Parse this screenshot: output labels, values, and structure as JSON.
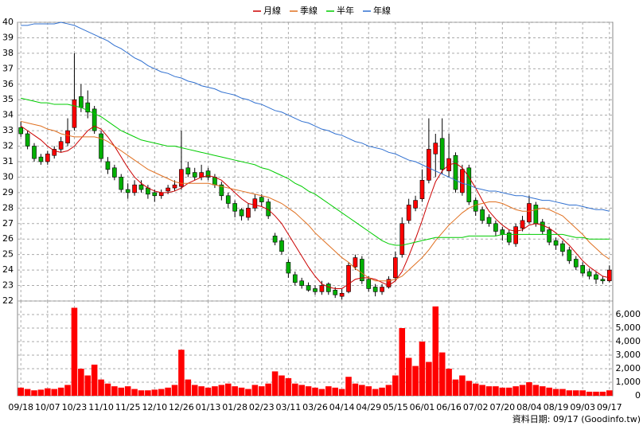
{
  "chart_data": {
    "type": "candlestick",
    "source_note": "資料日期: 09/17 (Goodinfo.tw)",
    "categories": [
      "09/18",
      null,
      null,
      null,
      "10/07",
      null,
      null,
      null,
      "10/23",
      null,
      null,
      null,
      "11/10",
      null,
      null,
      null,
      "11/25",
      null,
      null,
      null,
      "12/10",
      null,
      null,
      null,
      "12/26",
      null,
      null,
      null,
      "01/13",
      null,
      null,
      null,
      "01/28",
      null,
      null,
      null,
      "02/23",
      null,
      null,
      null,
      "03/11",
      null,
      null,
      null,
      "03/26",
      null,
      null,
      null,
      "04/14",
      null,
      null,
      null,
      "04/29",
      null,
      null,
      null,
      "05/15",
      null,
      null,
      null,
      "06/01",
      null,
      null,
      null,
      "06/16",
      null,
      null,
      null,
      "07/02",
      null,
      null,
      null,
      "07/20",
      null,
      null,
      null,
      "08/04",
      null,
      null,
      null,
      "08/19",
      null,
      null,
      null,
      "09/03",
      null,
      null,
      null,
      "09/17"
    ],
    "open": [
      33.2,
      32.8,
      32.0,
      31.3,
      31.0,
      31.4,
      31.8,
      32.2,
      33.2,
      35.2,
      34.8,
      34.4,
      32.8,
      31.0,
      30.6,
      30.0,
      29.2,
      29.0,
      29.5,
      29.3,
      29.0,
      28.8,
      29.1,
      29.3,
      29.4,
      30.6,
      30.3,
      30.0,
      30.4,
      30.0,
      29.5,
      28.8,
      28.3,
      27.9,
      27.4,
      28.0,
      28.7,
      28.4,
      26.2,
      25.9,
      24.5,
      23.7,
      23.3,
      23.0,
      22.8,
      22.6,
      23.1,
      22.7,
      22.3,
      22.6,
      24.2,
      24.7,
      23.4,
      22.9,
      22.6,
      22.9,
      23.5,
      25.0,
      27.2,
      28.0,
      28.6,
      29.8,
      31.5,
      32.5,
      30.4,
      31.4,
      29.0,
      30.6,
      28.5,
      27.9,
      27.4,
      27.0,
      26.6,
      26.4,
      25.7,
      26.7,
      27.1,
      28.2,
      27.1,
      26.6,
      25.9,
      25.7,
      25.3,
      24.7,
      24.3,
      23.9,
      23.7,
      23.4,
      23.3
    ],
    "high": [
      33.6,
      33.0,
      32.2,
      31.5,
      31.7,
      32.0,
      32.6,
      33.8,
      38.0,
      36.0,
      35.6,
      34.6,
      33.0,
      31.3,
      30.8,
      30.2,
      29.6,
      29.8,
      29.8,
      29.5,
      29.2,
      29.2,
      29.5,
      29.8,
      33.0,
      31.0,
      30.6,
      30.8,
      30.6,
      30.2,
      29.7,
      29.0,
      28.5,
      28.0,
      28.3,
      28.9,
      28.9,
      28.6,
      26.4,
      26.1,
      24.7,
      23.9,
      23.5,
      23.2,
      23.0,
      23.3,
      23.2,
      22.9,
      22.8,
      24.5,
      25.0,
      24.9,
      23.6,
      23.1,
      23.1,
      23.6,
      25.2,
      27.4,
      28.6,
      28.8,
      30.5,
      33.8,
      32.8,
      33.8,
      32.8,
      31.6,
      30.8,
      30.8,
      28.7,
      28.1,
      27.6,
      27.2,
      26.8,
      26.6,
      27.0,
      27.5,
      28.8,
      28.4,
      27.3,
      26.8,
      26.1,
      25.9,
      25.5,
      24.9,
      24.5,
      24.1,
      23.9,
      23.6,
      24.3
    ],
    "low": [
      32.6,
      31.8,
      31.0,
      30.8,
      30.8,
      31.2,
      31.6,
      32.0,
      33.0,
      34.2,
      33.8,
      32.8,
      31.0,
      30.2,
      29.8,
      29.0,
      28.6,
      28.8,
      29.0,
      28.6,
      28.4,
      28.6,
      28.9,
      29.1,
      29.2,
      30.0,
      29.8,
      29.8,
      29.8,
      29.3,
      28.5,
      28.0,
      27.4,
      27.2,
      27.2,
      27.8,
      28.1,
      27.3,
      25.6,
      25.0,
      23.5,
      23.0,
      22.8,
      22.6,
      22.4,
      22.4,
      22.4,
      22.2,
      22.1,
      22.5,
      24.0,
      23.1,
      22.6,
      22.3,
      22.4,
      22.8,
      23.3,
      24.8,
      27.0,
      27.8,
      28.4,
      29.6,
      30.0,
      30.2,
      30.0,
      29.0,
      28.8,
      28.2,
      27.5,
      27.0,
      26.8,
      26.2,
      25.9,
      25.6,
      25.5,
      26.5,
      27.0,
      26.8,
      26.3,
      25.6,
      25.3,
      24.9,
      24.4,
      24.0,
      23.6,
      23.4,
      23.1,
      23.1,
      23.2
    ],
    "close": [
      32.8,
      32.0,
      31.2,
      31.0,
      31.5,
      31.8,
      32.3,
      33.0,
      35.0,
      34.5,
      34.2,
      33.0,
      31.2,
      30.5,
      30.0,
      29.2,
      29.0,
      29.5,
      29.2,
      28.9,
      28.8,
      29.0,
      29.3,
      29.5,
      30.5,
      30.2,
      30.0,
      30.3,
      30.0,
      29.5,
      28.8,
      28.3,
      27.8,
      27.5,
      28.0,
      28.6,
      28.4,
      27.5,
      25.8,
      25.2,
      23.8,
      23.2,
      23.0,
      22.7,
      22.6,
      23.0,
      22.6,
      22.4,
      22.5,
      24.3,
      24.8,
      23.3,
      22.8,
      22.6,
      22.9,
      23.4,
      24.8,
      27.0,
      28.2,
      28.5,
      29.8,
      31.8,
      32.2,
      30.5,
      31.2,
      29.2,
      30.5,
      28.4,
      27.8,
      27.2,
      27.0,
      26.5,
      26.3,
      25.8,
      26.8,
      27.2,
      28.3,
      27.0,
      26.5,
      25.8,
      25.6,
      25.2,
      24.6,
      24.2,
      23.8,
      23.6,
      23.4,
      23.3,
      24.0
    ],
    "volume": [
      600,
      500,
      400,
      450,
      550,
      500,
      600,
      800,
      6500,
      2000,
      1500,
      2300,
      1200,
      900,
      700,
      600,
      700,
      500,
      400,
      400,
      450,
      500,
      600,
      800,
      3400,
      1200,
      800,
      700,
      600,
      700,
      800,
      900,
      700,
      600,
      500,
      800,
      700,
      900,
      1800,
      1500,
      1300,
      900,
      800,
      700,
      600,
      500,
      700,
      600,
      500,
      1400,
      900,
      800,
      700,
      500,
      600,
      800,
      1500,
      5000,
      2800,
      2200,
      4000,
      2500,
      6600,
      3200,
      2000,
      1200,
      1500,
      1100,
      900,
      800,
      700,
      700,
      600,
      600,
      700,
      800,
      1000,
      800,
      700,
      600,
      500,
      500,
      400,
      400,
      400,
      300,
      300,
      300,
      400
    ],
    "up_color": "#ff0000",
    "down_color": "#00b000",
    "volume_color": "#ff0000",
    "series": [
      {
        "name": "月線",
        "color": "#cc0000",
        "values": [
          33.3,
          33.0,
          32.7,
          32.4,
          32.0,
          31.7,
          31.6,
          31.7,
          32.0,
          32.5,
          33.0,
          33.3,
          33.1,
          32.6,
          32.0,
          31.3,
          30.6,
          30.0,
          29.6,
          29.3,
          29.1,
          29.0,
          29.0,
          29.1,
          29.3,
          29.6,
          29.8,
          30.0,
          30.1,
          30.0,
          29.8,
          29.4,
          29.0,
          28.6,
          28.3,
          28.2,
          28.1,
          27.9,
          27.5,
          27.0,
          26.3,
          25.6,
          24.9,
          24.2,
          23.6,
          23.1,
          22.9,
          22.8,
          22.8,
          23.1,
          23.4,
          23.5,
          23.5,
          23.4,
          23.2,
          23.0,
          23.3,
          23.9,
          24.9,
          26.0,
          27.2,
          28.5,
          29.7,
          30.4,
          30.8,
          30.9,
          30.6,
          30.0,
          29.3,
          28.5,
          27.8,
          27.3,
          26.9,
          26.6,
          26.5,
          26.6,
          26.9,
          27.0,
          26.9,
          26.7,
          26.4,
          26.0,
          25.6,
          25.1,
          24.6,
          24.2,
          23.9,
          23.6,
          23.5
        ]
      },
      {
        "name": "季線",
        "color": "#e07020",
        "values": [
          33.6,
          33.5,
          33.4,
          33.3,
          33.1,
          33.0,
          32.8,
          32.7,
          32.6,
          32.6,
          32.6,
          32.6,
          32.5,
          32.3,
          32.0,
          31.7,
          31.4,
          31.1,
          30.8,
          30.5,
          30.3,
          30.1,
          29.9,
          29.7,
          29.6,
          29.6,
          29.6,
          29.6,
          29.6,
          29.5,
          29.4,
          29.3,
          29.2,
          29.1,
          29.0,
          28.9,
          28.8,
          28.7,
          28.5,
          28.3,
          28.0,
          27.7,
          27.3,
          26.9,
          26.4,
          26.0,
          25.6,
          25.2,
          24.8,
          24.5,
          24.1,
          23.8,
          23.5,
          23.3,
          23.3,
          23.3,
          23.4,
          23.6,
          24.0,
          24.4,
          24.8,
          25.3,
          25.9,
          26.4,
          26.9,
          27.3,
          27.7,
          28.0,
          28.2,
          28.3,
          28.4,
          28.4,
          28.3,
          28.1,
          27.9,
          27.8,
          27.8,
          27.9,
          28.0,
          27.9,
          27.7,
          27.5,
          27.1,
          26.7,
          26.3,
          25.8,
          25.4,
          25.0,
          24.7
        ]
      },
      {
        "name": "半年",
        "color": "#00cc00",
        "values": [
          35.1,
          35.0,
          34.9,
          34.8,
          34.8,
          34.7,
          34.7,
          34.7,
          34.6,
          34.5,
          34.3,
          34.1,
          33.9,
          33.6,
          33.3,
          33.0,
          32.8,
          32.6,
          32.4,
          32.3,
          32.2,
          32.1,
          32.0,
          32.0,
          31.9,
          31.8,
          31.7,
          31.6,
          31.5,
          31.4,
          31.3,
          31.2,
          31.1,
          31.0,
          30.9,
          30.8,
          30.6,
          30.5,
          30.3,
          30.1,
          29.9,
          29.6,
          29.4,
          29.1,
          28.9,
          28.6,
          28.3,
          28.0,
          27.7,
          27.4,
          27.1,
          26.8,
          26.5,
          26.2,
          25.9,
          25.7,
          25.6,
          25.6,
          25.7,
          25.8,
          25.9,
          26.0,
          26.1,
          26.1,
          26.1,
          26.1,
          26.1,
          26.2,
          26.2,
          26.2,
          26.2,
          26.2,
          26.3,
          26.3,
          26.3,
          26.3,
          26.3,
          26.3,
          26.3,
          26.3,
          26.3,
          26.3,
          26.2,
          26.1,
          26.1,
          26.0,
          26.0,
          26.0,
          26.0
        ]
      },
      {
        "name": "年線",
        "color": "#3070d0",
        "values": [
          39.8,
          39.8,
          39.9,
          39.9,
          39.9,
          39.9,
          40.0,
          39.9,
          39.8,
          39.6,
          39.4,
          39.2,
          39.0,
          38.8,
          38.5,
          38.3,
          38.0,
          37.7,
          37.5,
          37.2,
          37.0,
          36.8,
          36.7,
          36.5,
          36.4,
          36.2,
          36.1,
          35.9,
          35.8,
          35.7,
          35.5,
          35.4,
          35.3,
          35.1,
          35.0,
          34.8,
          34.7,
          34.5,
          34.3,
          34.2,
          34.0,
          33.8,
          33.6,
          33.5,
          33.3,
          33.1,
          33.0,
          32.8,
          32.7,
          32.5,
          32.3,
          32.2,
          32.0,
          31.9,
          31.8,
          31.6,
          31.5,
          31.3,
          31.1,
          31.0,
          30.8,
          30.6,
          30.4,
          30.2,
          30.0,
          29.8,
          29.6,
          29.5,
          29.3,
          29.2,
          29.1,
          29.1,
          29.0,
          28.9,
          28.8,
          28.8,
          28.7,
          28.6,
          28.5,
          28.5,
          28.4,
          28.3,
          28.2,
          28.2,
          28.1,
          28.0,
          27.9,
          27.9,
          27.8
        ]
      }
    ],
    "ylim": [
      22,
      40
    ],
    "yticks": [
      22,
      23,
      24,
      25,
      26,
      27,
      28,
      29,
      30,
      31,
      32,
      33,
      34,
      35,
      36,
      37,
      38,
      39,
      40
    ],
    "y2lim": [
      0,
      7000
    ],
    "y2ticks": [
      0,
      {
        "value": 1000,
        "label": "1,000"
      },
      {
        "value": 2000,
        "label": "2,000"
      },
      {
        "value": 3000,
        "label": "3,000"
      },
      {
        "value": 4000,
        "label": "4,000"
      },
      {
        "value": 5000,
        "label": "5,000"
      },
      {
        "value": 6000,
        "label": "6,000"
      }
    ],
    "grid": true
  }
}
